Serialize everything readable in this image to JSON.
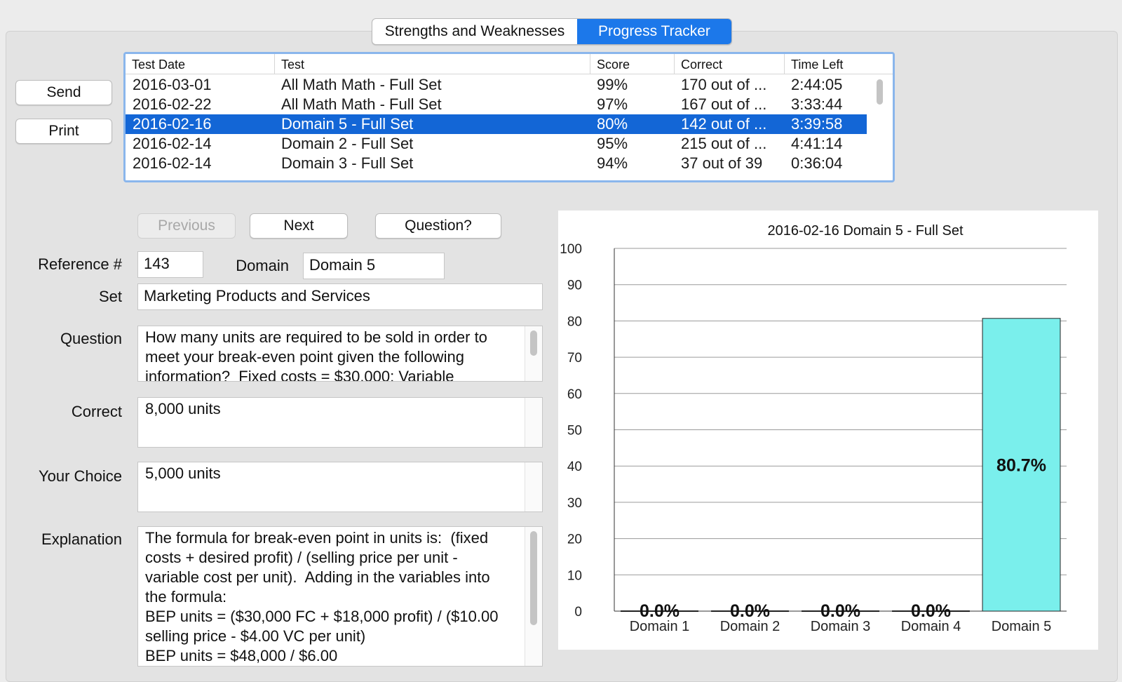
{
  "tabs": [
    {
      "label": "Strengths and Weaknesses",
      "active": false
    },
    {
      "label": "Progress Tracker",
      "active": true
    }
  ],
  "side_buttons": {
    "send": "Send",
    "print": "Print"
  },
  "table": {
    "columns": [
      "Test Date",
      "Test",
      "Score",
      "Correct",
      "Time Left"
    ],
    "rows": [
      {
        "date": "2016-03-01",
        "test": "All Math Math - Full Set",
        "score": "99%",
        "correct": "170 out of ...",
        "time": "2:44:05",
        "selected": false
      },
      {
        "date": "2016-02-22",
        "test": "All Math Math - Full Set",
        "score": "97%",
        "correct": "167 out of ...",
        "time": "3:33:44",
        "selected": false
      },
      {
        "date": "2016-02-16",
        "test": "Domain 5 - Full Set",
        "score": "80%",
        "correct": "142 out of ...",
        "time": "3:39:58",
        "selected": true
      },
      {
        "date": "2016-02-14",
        "test": "Domain 2 - Full Set",
        "score": "95%",
        "correct": "215 out of ...",
        "time": "4:41:14",
        "selected": false
      },
      {
        "date": "2016-02-14",
        "test": "Domain 3 - Full Set",
        "score": "94%",
        "correct": "37 out of 39",
        "time": "0:36:04",
        "selected": false
      }
    ]
  },
  "nav": {
    "previous": "Previous",
    "next": "Next",
    "question": "Question?"
  },
  "form": {
    "reference_label": "Reference #",
    "reference_value": "143",
    "domain_label": "Domain",
    "domain_value": "Domain 5",
    "set_label": "Set",
    "set_value": "Marketing Products and Services",
    "question_label": "Question",
    "question_text": "How many units are required to be sold in order to meet your break-even point given the following information?  Fixed costs = $30,000; Variable",
    "correct_label": "Correct",
    "correct_value": "8,000 units",
    "choice_label": "Your Choice",
    "choice_value": "5,000 units",
    "explanation_label": "Explanation",
    "explanation_text": "The formula for break-even point in units is:  (fixed costs + desired profit) / (selling price per unit - variable cost per unit).  Adding in the variables into the formula:\nBEP units = ($30,000 FC + $18,000 profit) / ($10.00 selling price - $4.00 VC per unit)\nBEP units = $48,000 / $6.00"
  },
  "colors": {
    "accent": "#1c78ea",
    "selection": "#1366d6",
    "bar": "#7aefec"
  },
  "chart_data": {
    "type": "bar",
    "title": "2016-02-16   Domain 5 - Full Set",
    "categories": [
      "Domain 1",
      "Domain 2",
      "Domain 3",
      "Domain 4",
      "Domain 5"
    ],
    "values": [
      0.0,
      0.0,
      0.0,
      0.0,
      80.7
    ],
    "data_labels": [
      "0.0%",
      "0.0%",
      "0.0%",
      "0.0%",
      "80.7%"
    ],
    "ylim": [
      0,
      100
    ],
    "yticks": [
      "0",
      "10",
      "20",
      "30",
      "40",
      "50",
      "60",
      "70",
      "80",
      "90",
      "100"
    ],
    "grid": true
  }
}
